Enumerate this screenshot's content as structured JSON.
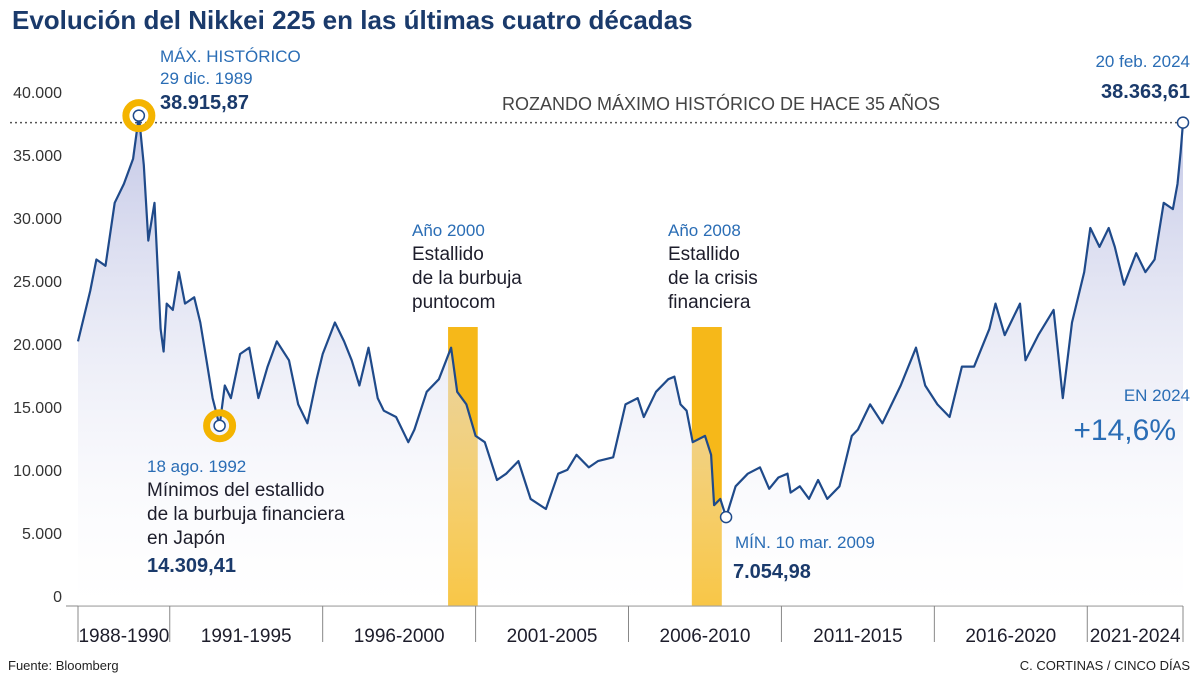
{
  "chart_data": {
    "type": "line",
    "title": "Evolución del Nikkei 225 en las últimas cuatro décadas",
    "x": [
      1988.0,
      1988.4,
      1988.6,
      1988.9,
      1989.2,
      1989.5,
      1989.8,
      1989.99,
      1990.15,
      1990.3,
      1990.5,
      1990.7,
      1990.8,
      1990.9,
      1991.1,
      1991.3,
      1991.5,
      1991.8,
      1992.0,
      1992.2,
      1992.4,
      1992.63,
      1992.8,
      1993.0,
      1993.3,
      1993.6,
      1993.9,
      1994.2,
      1994.5,
      1994.9,
      1995.2,
      1995.5,
      1995.8,
      1996.0,
      1996.4,
      1996.7,
      1996.95,
      1997.2,
      1997.5,
      1997.8,
      1998.0,
      1998.4,
      1998.8,
      1999.0,
      1999.4,
      1999.8,
      2000.2,
      2000.4,
      2000.7,
      2001.0,
      2001.3,
      2001.7,
      2002.0,
      2002.4,
      2002.8,
      2003.3,
      2003.7,
      2004.0,
      2004.3,
      2004.7,
      2005.0,
      2005.5,
      2005.9,
      2006.3,
      2006.5,
      2006.9,
      2007.3,
      2007.5,
      2007.7,
      2007.9,
      2008.1,
      2008.5,
      2008.7,
      2008.8,
      2009.0,
      2009.19,
      2009.5,
      2009.9,
      2010.3,
      2010.6,
      2010.9,
      2011.2,
      2011.3,
      2011.6,
      2011.9,
      2012.2,
      2012.5,
      2012.9,
      2013.3,
      2013.5,
      2013.9,
      2014.3,
      2014.9,
      2015.4,
      2015.7,
      2016.1,
      2016.5,
      2016.9,
      2017.3,
      2017.8,
      2018.0,
      2018.3,
      2018.8,
      2018.98,
      2019.4,
      2019.9,
      2020.2,
      2020.5,
      2020.9,
      2021.1,
      2021.4,
      2021.7,
      2021.9,
      2022.2,
      2022.6,
      2022.9,
      2023.2,
      2023.5,
      2023.8,
      2023.95,
      2024.05,
      2024.13
    ],
    "series": [
      {
        "color": "#1f4a8a",
        "values": [
          21000,
          25000,
          27500,
          27000,
          32000,
          33500,
          35500,
          38915.87,
          35000,
          29000,
          32000,
          22000,
          20200,
          24000,
          23500,
          26500,
          24000,
          24500,
          22500,
          19500,
          16500,
          14309.41,
          17500,
          16500,
          20000,
          20500,
          16500,
          19000,
          21000,
          19500,
          16000,
          14500,
          18000,
          20000,
          22500,
          21000,
          19500,
          17500,
          20500,
          16500,
          15500,
          15000,
          13000,
          14000,
          17000,
          18000,
          20500,
          17000,
          16000,
          13500,
          13000,
          10000,
          10500,
          11500,
          8500,
          7700,
          10500,
          10800,
          12000,
          11000,
          11500,
          11800,
          16000,
          16500,
          15000,
          17000,
          18000,
          18200,
          16000,
          15500,
          13000,
          13500,
          12000,
          8000,
          8500,
          7054.98,
          9500,
          10500,
          11000,
          9300,
          10200,
          10500,
          9000,
          9500,
          8500,
          10000,
          8500,
          9500,
          13500,
          14000,
          16000,
          14500,
          17500,
          20500,
          17500,
          16000,
          15000,
          19000,
          19000,
          22000,
          24000,
          21500,
          24000,
          19500,
          21500,
          23500,
          16500,
          22500,
          26500,
          30000,
          28500,
          30000,
          28500,
          25500,
          28000,
          26500,
          27500,
          32000,
          31500,
          33500,
          36000,
          38363.61
        ]
      }
    ],
    "xlim": [
      1988,
      2024.13
    ],
    "xticks": [
      1988,
      1991,
      1996,
      2001,
      2006,
      2011,
      2016,
      2021,
      2024.13
    ],
    "periods": [
      "1988-1990",
      "1991-1995",
      "1996-2000",
      "2001-2005",
      "2006-2010",
      "2011-2015",
      "2016-2020",
      "2021-2024"
    ],
    "ylim": [
      0,
      40000
    ],
    "yticks": [
      0,
      {
        "value": 5000,
        "label": "5.000"
      },
      {
        "value": 10000,
        "label": "10.000"
      },
      {
        "value": 15000,
        "label": "15.000"
      },
      {
        "value": 20000,
        "label": "20.000"
      },
      {
        "value": 25000,
        "label": "25.000"
      },
      {
        "value": 30000,
        "label": "30.000"
      },
      {
        "value": 35000,
        "label": "35.000"
      },
      {
        "value": 40000,
        "label": "40.000"
      }
    ],
    "highlights": [
      {
        "start": 2000.1,
        "end": 2001.07,
        "color": "#f6b819",
        "label": "Año 2000",
        "lines": [
          "Estallido",
          "de la burbuja",
          "puntocom"
        ]
      },
      {
        "start": 2008.07,
        "end": 2009.05,
        "color": "#f6b819",
        "label": "Año 2008",
        "lines": [
          "Estallido",
          "de la crisis",
          "financiera"
        ]
      }
    ],
    "annotations": [
      {
        "x": 1989.99,
        "value": 38915.87,
        "value_label": "38.915,87",
        "title": "MÁX. HISTÓRICO",
        "date": "29 dic. 1989"
      },
      {
        "x": 1992.63,
        "value": 14309.41,
        "value_label": "14.309,41",
        "date": "18 ago. 1992",
        "lines": [
          "Mínimos del estallido",
          "de la burbuja financiera",
          "en Japón"
        ]
      },
      {
        "x": 2009.19,
        "value": 7054.98,
        "value_label": "7.054,98",
        "date": "MÍN. 10 mar. 2009"
      },
      {
        "x": 2024.13,
        "value": 38363.61,
        "value_label": "38.363,61",
        "date": "20 feb. 2024"
      }
    ],
    "reference_text": "ROZANDO MÁXIMO HISTÓRICO DE HACE 35 AÑOS",
    "change": {
      "label": "EN 2024",
      "value": 14.6,
      "value_label": "+14,6%"
    },
    "source": "Fuente: Bloomberg",
    "credit": "C. CORTINAS / CINCO DÍAS"
  }
}
